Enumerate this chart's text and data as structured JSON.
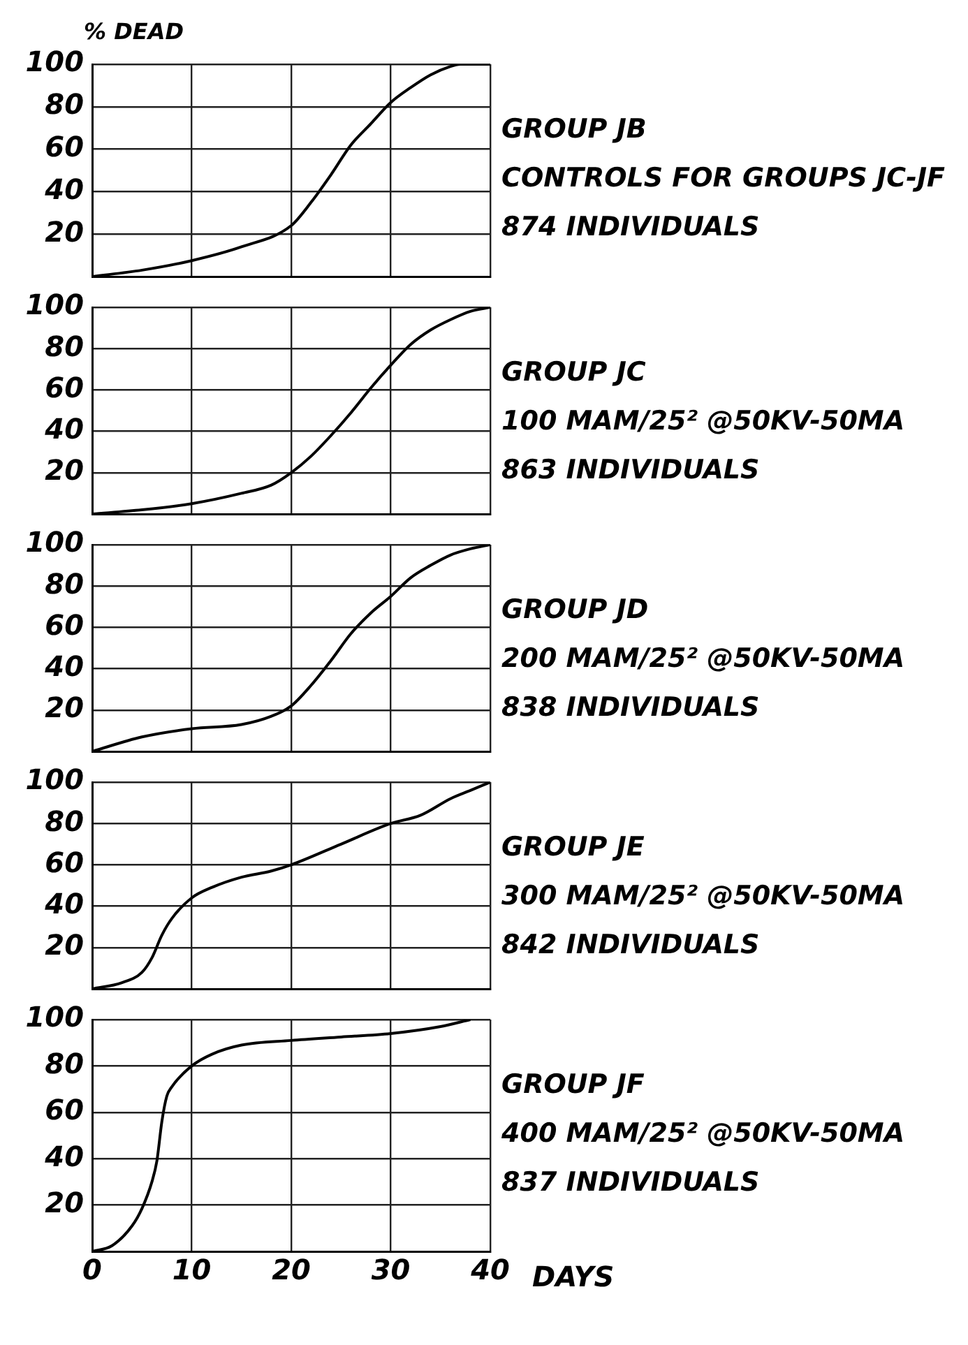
{
  "chart_data": [
    {
      "type": "line",
      "ylabel": "% DEAD",
      "xlim": [
        0,
        40
      ],
      "xticks": [
        0,
        10,
        20,
        30,
        40
      ],
      "ylim": [
        0,
        100
      ],
      "yticks": [
        20,
        40,
        60,
        80,
        100
      ],
      "grid": true,
      "tick_labels": "y",
      "marker": "none",
      "line_style": "solid",
      "series": [
        {
          "name": "GROUP JB",
          "color": "#000000",
          "x": [
            0,
            5,
            10,
            15,
            20,
            22,
            24,
            26,
            28,
            30,
            32,
            34,
            36,
            37,
            40
          ],
          "values": [
            0,
            3,
            7.5,
            14,
            24,
            35,
            48,
            62,
            72,
            82,
            89,
            95,
            99,
            100,
            100
          ]
        }
      ],
      "annotations": [
        "CONTROLS FOR GROUPS JC-JF",
        "874 INDIVIDUALS"
      ]
    },
    {
      "type": "line",
      "xlim": [
        0,
        40
      ],
      "xticks": [
        0,
        10,
        20,
        30,
        40
      ],
      "ylim": [
        0,
        100
      ],
      "yticks": [
        20,
        40,
        60,
        80,
        100
      ],
      "grid": true,
      "tick_labels": "y",
      "marker": "none",
      "line_style": "solid",
      "series": [
        {
          "name": "GROUP JC",
          "color": "#000000",
          "x": [
            0,
            5,
            10,
            15,
            18,
            20,
            22,
            24,
            26,
            28,
            30,
            32,
            34,
            36,
            38,
            40
          ],
          "values": [
            0,
            2,
            5,
            10,
            14,
            20,
            28,
            38,
            49,
            61,
            72,
            82,
            89,
            94,
            98,
            100
          ]
        }
      ],
      "annotations": [
        "100 MAM/25² @50KV-50MA",
        "863 INDIVIDUALS"
      ]
    },
    {
      "type": "line",
      "xlim": [
        0,
        40
      ],
      "xticks": [
        0,
        10,
        20,
        30,
        40
      ],
      "ylim": [
        0,
        100
      ],
      "yticks": [
        20,
        40,
        60,
        80,
        100
      ],
      "grid": true,
      "tick_labels": "y",
      "marker": "none",
      "line_style": "solid",
      "series": [
        {
          "name": "GROUP JD",
          "color": "#000000",
          "x": [
            0,
            5,
            10,
            15,
            18,
            20,
            22,
            24,
            26,
            28,
            30,
            32,
            34,
            36,
            38,
            40
          ],
          "values": [
            0,
            7,
            11,
            13,
            17,
            22,
            32,
            44,
            57,
            67,
            75,
            84,
            90,
            95,
            98,
            100
          ]
        }
      ],
      "annotations": [
        "200 MAM/25² @50KV-50MA",
        "838 INDIVIDUALS"
      ]
    },
    {
      "type": "line",
      "xlim": [
        0,
        40
      ],
      "xticks": [
        0,
        10,
        20,
        30,
        40
      ],
      "ylim": [
        0,
        100
      ],
      "yticks": [
        20,
        40,
        60,
        80,
        100
      ],
      "grid": true,
      "tick_labels": "y",
      "marker": "none",
      "line_style": "solid",
      "series": [
        {
          "name": "GROUP JE",
          "color": "#000000",
          "x": [
            0,
            3,
            5,
            6,
            7,
            8,
            10,
            12,
            15,
            18,
            20,
            25,
            30,
            33,
            36,
            38,
            40
          ],
          "values": [
            0,
            3,
            8,
            15,
            26,
            34,
            44,
            49,
            54,
            57,
            60,
            70,
            80,
            84,
            92,
            96,
            100
          ]
        }
      ],
      "annotations": [
        "300 MAM/25² @50KV-50MA",
        "842 INDIVIDUALS"
      ]
    },
    {
      "type": "line",
      "xlabel": "DAYS",
      "xlim": [
        0,
        40
      ],
      "xticks": [
        0,
        10,
        20,
        30,
        40
      ],
      "ylim": [
        0,
        100
      ],
      "yticks": [
        20,
        40,
        60,
        80,
        100
      ],
      "grid": true,
      "marker": "none",
      "line_style": "solid",
      "series": [
        {
          "name": "GROUP JF",
          "color": "#000000",
          "x": [
            0,
            2,
            4,
            5,
            6,
            6.5,
            7,
            7.5,
            8,
            10,
            12,
            15,
            20,
            25,
            30,
            35,
            38
          ],
          "values": [
            0,
            2.5,
            11,
            18.5,
            30,
            39,
            56,
            67,
            71,
            80,
            85,
            89,
            91,
            92.5,
            94,
            97,
            100
          ]
        }
      ],
      "annotations": [
        "400 MAM/25² @50KV-50MA",
        "837 INDIVIDUALS"
      ]
    }
  ]
}
